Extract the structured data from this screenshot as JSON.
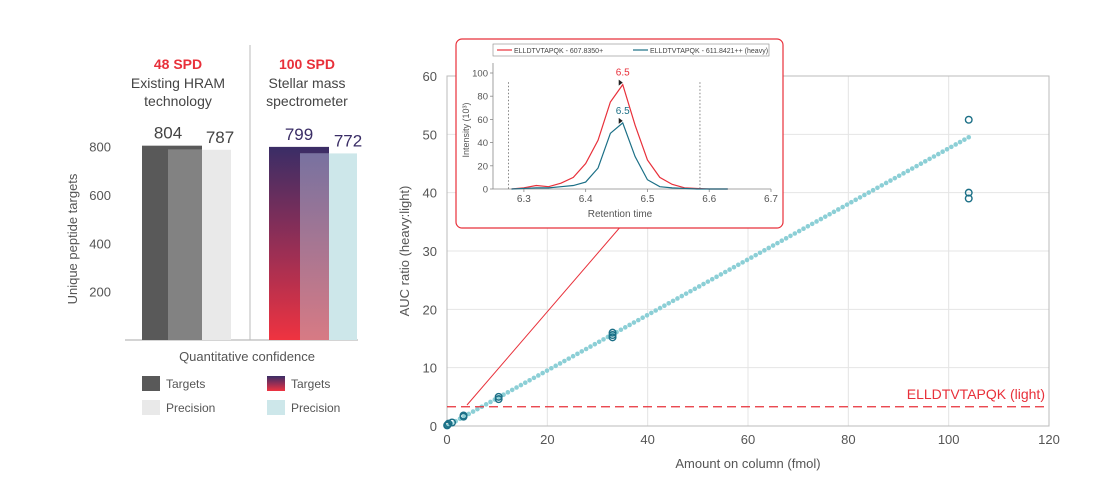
{
  "bar_panel": {
    "groups": [
      {
        "header": "48 SPD",
        "label_line1": "Existing HRAM",
        "label_line2": "technology"
      },
      {
        "header": "100 SPD",
        "label_line1": "Stellar mass",
        "label_line2": "spectrometer"
      }
    ],
    "xlabel": "Quantitative confidence",
    "legend_left": [
      "Targets",
      "Precision"
    ],
    "legend_right": [
      "Targets",
      "Precision"
    ]
  },
  "chart_data": [
    {
      "type": "bar",
      "ylabel": "Unique peptide targets",
      "yticks": [
        "200",
        "400",
        "600",
        "800"
      ],
      "ylim": [
        0,
        850
      ],
      "categories": [
        "48 SPD",
        "100 SPD"
      ],
      "series": [
        {
          "name": "Targets",
          "values": [
            804,
            799
          ]
        },
        {
          "name": "Precision",
          "values": [
            787,
            772
          ]
        }
      ],
      "colors": {
        "existing_targets": "#595959",
        "existing_precision": "#e9e9e9",
        "stellar_targets_top": "#3a2d66",
        "stellar_targets_bottom": "#ef3340",
        "stellar_precision": "#cde7ea",
        "header": "#e8303a"
      }
    },
    {
      "type": "scatter",
      "xlabel": "Amount on column (fmol)",
      "ylabel": "AUC ratio (heavy:light)",
      "xticks": [
        "0",
        "20",
        "40",
        "60",
        "80",
        "100",
        "120"
      ],
      "yticks": [
        "0",
        "10",
        "20",
        "30",
        "40",
        "50",
        "60"
      ],
      "xlim": [
        0,
        120
      ],
      "ylim": [
        0,
        60
      ],
      "grid": true,
      "points": [
        [
          0.03,
          0.1
        ],
        [
          0.1,
          0.2
        ],
        [
          0.3,
          0.4
        ],
        [
          1.0,
          0.6
        ],
        [
          3.3,
          1.6
        ],
        [
          3.3,
          1.8
        ],
        [
          10.3,
          4.6
        ],
        [
          10.3,
          5.0
        ],
        [
          33.0,
          15.2
        ],
        [
          33.0,
          15.6
        ],
        [
          33.0,
          16.0
        ],
        [
          104,
          39.0
        ],
        [
          104,
          40.0
        ],
        [
          104,
          52.5
        ]
      ],
      "fit_line": {
        "x": [
          0,
          104
        ],
        "y": [
          0,
          49.5
        ]
      },
      "lloq": {
        "y": 3.3,
        "label": "ELLDTVTAPQK (light)"
      },
      "colors": {
        "points": "#1b6f86",
        "fit": "#8ccfd6",
        "lloq": "#e8303a"
      }
    },
    {
      "type": "line",
      "title": "",
      "xlabel": "Retention time",
      "ylabel": "Intensity (10³)",
      "xticks": [
        "6.3",
        "6.4",
        "6.5",
        "6.6",
        "6.7"
      ],
      "yticks": [
        "0",
        "20",
        "40",
        "60",
        "80",
        "100"
      ],
      "xlim": [
        6.25,
        6.7
      ],
      "ylim": [
        0,
        100
      ],
      "legend": [
        "ELLDTVTAPQK - 607.8350+",
        "ELLDTVTAPQK - 611.8421++ (heavy)"
      ],
      "series": [
        {
          "name": "ELLDTVTAPQK - 607.8350+",
          "color": "#e8303a",
          "x": [
            6.28,
            6.3,
            6.32,
            6.34,
            6.36,
            6.38,
            6.4,
            6.42,
            6.44,
            6.46,
            6.48,
            6.5,
            6.52,
            6.54,
            6.56,
            6.58,
            6.6,
            6.63
          ],
          "y": [
            0,
            1,
            3,
            2,
            5,
            10,
            22,
            42,
            75,
            90,
            55,
            25,
            10,
            4,
            1,
            0.5,
            0,
            0
          ]
        },
        {
          "name": "ELLDTVTAPQK - 611.8421++ (heavy)",
          "color": "#1b6f86",
          "x": [
            6.28,
            6.3,
            6.32,
            6.34,
            6.36,
            6.38,
            6.4,
            6.42,
            6.44,
            6.46,
            6.48,
            6.5,
            6.52,
            6.54,
            6.56,
            6.58,
            6.6,
            6.63
          ],
          "y": [
            0,
            0.5,
            1,
            1,
            2,
            3,
            6,
            18,
            48,
            57,
            28,
            8,
            2,
            1,
            0.5,
            0,
            0,
            0
          ]
        }
      ],
      "annotations": [
        {
          "label": "6.5"
        },
        {
          "label": "6.5"
        }
      ],
      "integration_bounds": [
        6.275,
        6.585
      ]
    }
  ]
}
